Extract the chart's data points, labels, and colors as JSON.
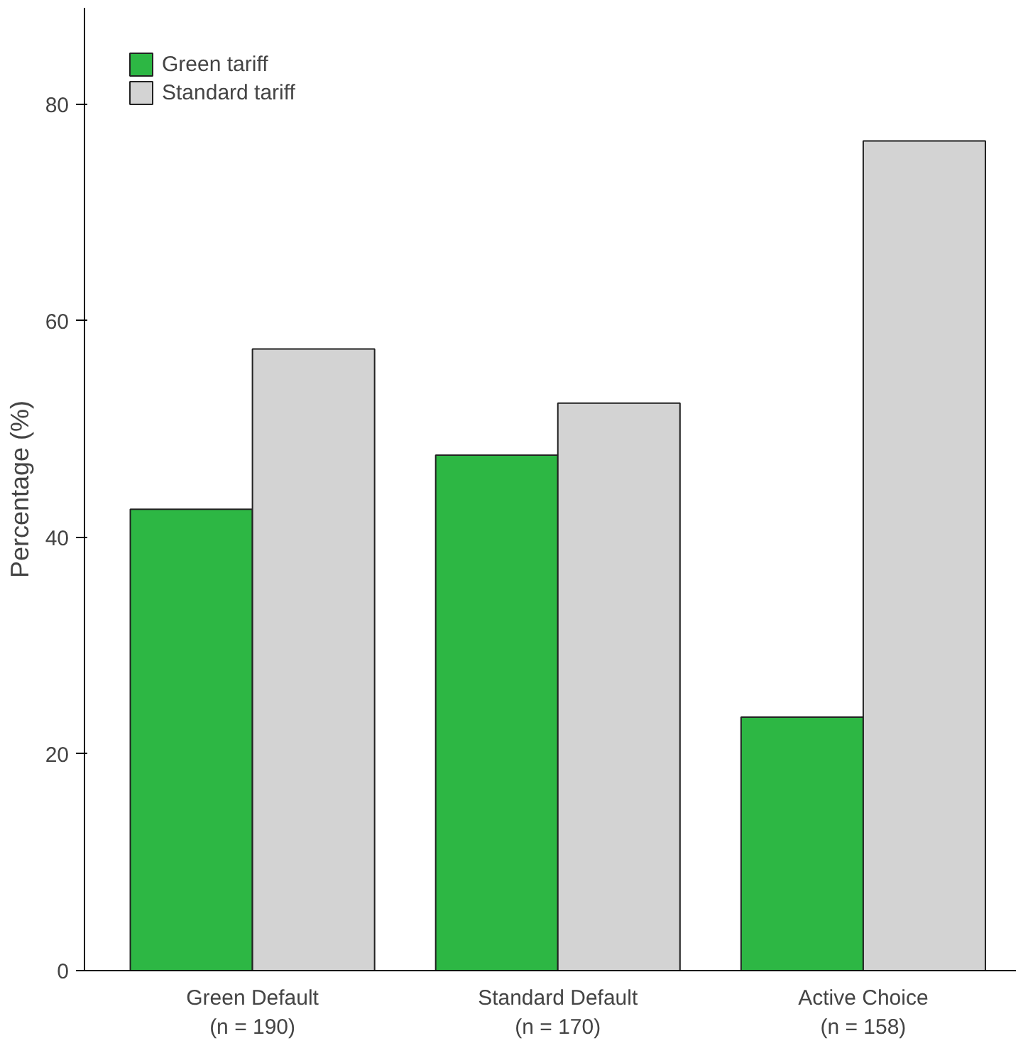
{
  "chart_data": {
    "type": "bar",
    "ylabel": "Percentage (%)",
    "categories": [
      "Green Default\n(n = 190)",
      "Standard Default\n(n = 170)",
      "Active Choice\n(n = 158)"
    ],
    "series": [
      {
        "name": "Green tariff",
        "color": "#2db744",
        "values": [
          42.6,
          47.6,
          23.4
        ]
      },
      {
        "name": "Standard tariff",
        "color": "#d3d3d3",
        "values": [
          57.4,
          52.4,
          76.6
        ]
      }
    ],
    "ylim": [
      0,
      88.9
    ],
    "yticks": [
      0,
      20,
      40,
      60,
      80
    ],
    "grid": false,
    "legend": "top left"
  }
}
